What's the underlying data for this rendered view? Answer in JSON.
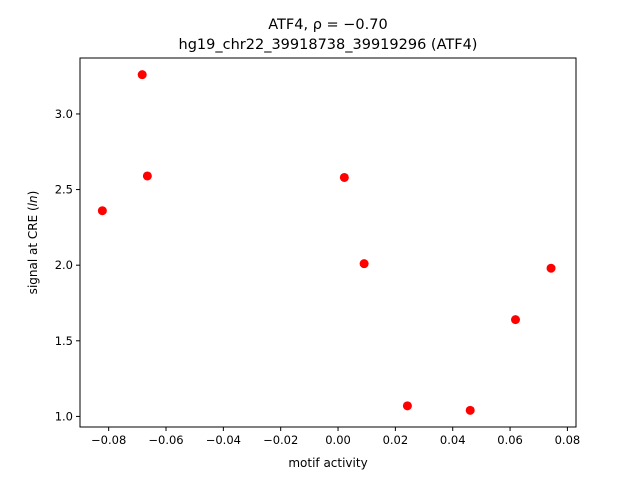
{
  "chart_data": {
    "type": "scatter",
    "title_line1": "ATF4, ρ = −0.70",
    "title_line2": "hg19_chr22_39918738_39919296 (ATF4)",
    "xlabel": "motif activity",
    "ylabel": "signal at CRE (ln)",
    "ylabel_prefix": "signal at CRE (",
    "ylabel_italic": "ln",
    "ylabel_suffix": ")",
    "xlim": [
      -0.09,
      0.083
    ],
    "ylim": [
      0.93,
      3.37
    ],
    "xticks": [
      -0.08,
      -0.06,
      -0.04,
      -0.02,
      0.0,
      0.02,
      0.04,
      0.06,
      0.08
    ],
    "xtick_labels": [
      "−0.08",
      "−0.06",
      "−0.04",
      "−0.02",
      "0.00",
      "0.02",
      "0.04",
      "0.06",
      "0.08"
    ],
    "yticks": [
      1.0,
      1.5,
      2.0,
      2.5,
      3.0
    ],
    "ytick_labels": [
      "1.0",
      "1.5",
      "2.0",
      "2.5",
      "3.0"
    ],
    "grid": false,
    "point_color": "#ff0000",
    "points": [
      {
        "x": -0.0822,
        "y": 2.36
      },
      {
        "x": -0.0683,
        "y": 3.26
      },
      {
        "x": -0.0665,
        "y": 2.59
      },
      {
        "x": 0.0022,
        "y": 2.58
      },
      {
        "x": 0.0091,
        "y": 2.01
      },
      {
        "x": 0.0242,
        "y": 1.07
      },
      {
        "x": 0.0461,
        "y": 1.04
      },
      {
        "x": 0.0619,
        "y": 1.64
      },
      {
        "x": 0.0743,
        "y": 1.98
      }
    ]
  }
}
